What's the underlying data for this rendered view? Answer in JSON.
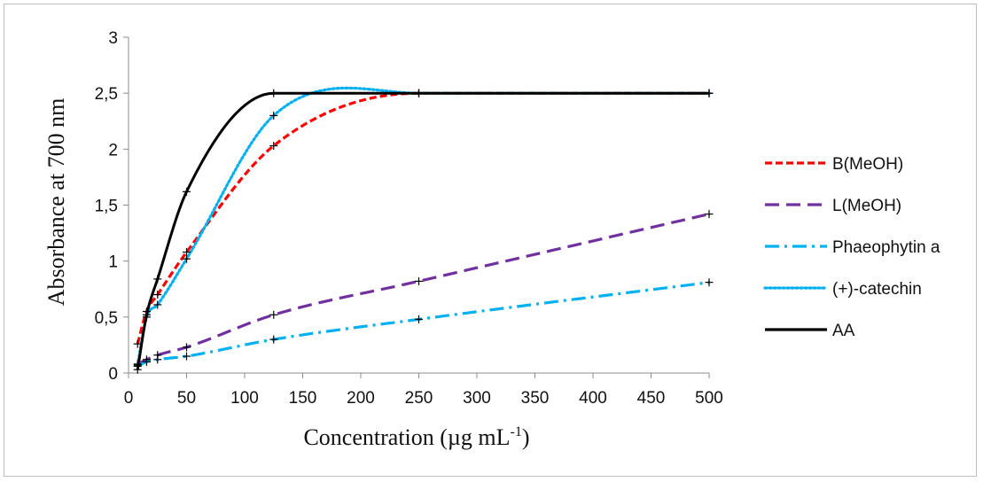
{
  "chart_data": {
    "type": "line",
    "title": "",
    "xlabel": "Concentration  (µg mL",
    "xlabel_sup": "-1",
    "xlabel_suffix": ")",
    "ylabel": "Absorbance at 700 nm",
    "xlim": [
      0,
      500
    ],
    "ylim": [
      0,
      3
    ],
    "x_ticks": [
      0,
      50,
      100,
      150,
      200,
      250,
      300,
      350,
      400,
      450,
      500
    ],
    "y_ticks": [
      0,
      0.5,
      1,
      1.5,
      2,
      2.5,
      3
    ],
    "y_tick_labels": [
      "0",
      "0,5",
      "1",
      "1,5",
      "2",
      "2,5",
      "3"
    ],
    "grid": false,
    "legend_position": "right",
    "x": [
      7.8,
      15.6,
      25,
      50,
      125,
      250,
      500
    ],
    "series": [
      {
        "name": "B(MeOH)",
        "color": "#ff0000",
        "dash": "short-dash",
        "values": [
          0.26,
          0.55,
          0.7,
          1.08,
          2.03,
          2.5,
          2.5
        ]
      },
      {
        "name": "L(MeOH)",
        "color": "#7030a0",
        "dash": "long-dash",
        "values": [
          0.08,
          0.12,
          0.16,
          0.23,
          0.52,
          0.82,
          1.42
        ]
      },
      {
        "name": "Phaeophytin a",
        "color": "#00b0f0",
        "dash": "dash-dot",
        "values": [
          0.06,
          0.1,
          0.12,
          0.15,
          0.3,
          0.48,
          0.81
        ]
      },
      {
        "name": "(+)-catechin",
        "color": "#00b0f0",
        "dash": "dotted",
        "values": [
          0.07,
          0.5,
          0.61,
          1.02,
          2.3,
          2.5,
          2.5
        ]
      },
      {
        "name": "AA",
        "color": "#000000",
        "dash": "solid",
        "values": [
          0.03,
          0.52,
          0.84,
          1.62,
          2.5,
          2.5,
          2.5
        ]
      }
    ]
  }
}
